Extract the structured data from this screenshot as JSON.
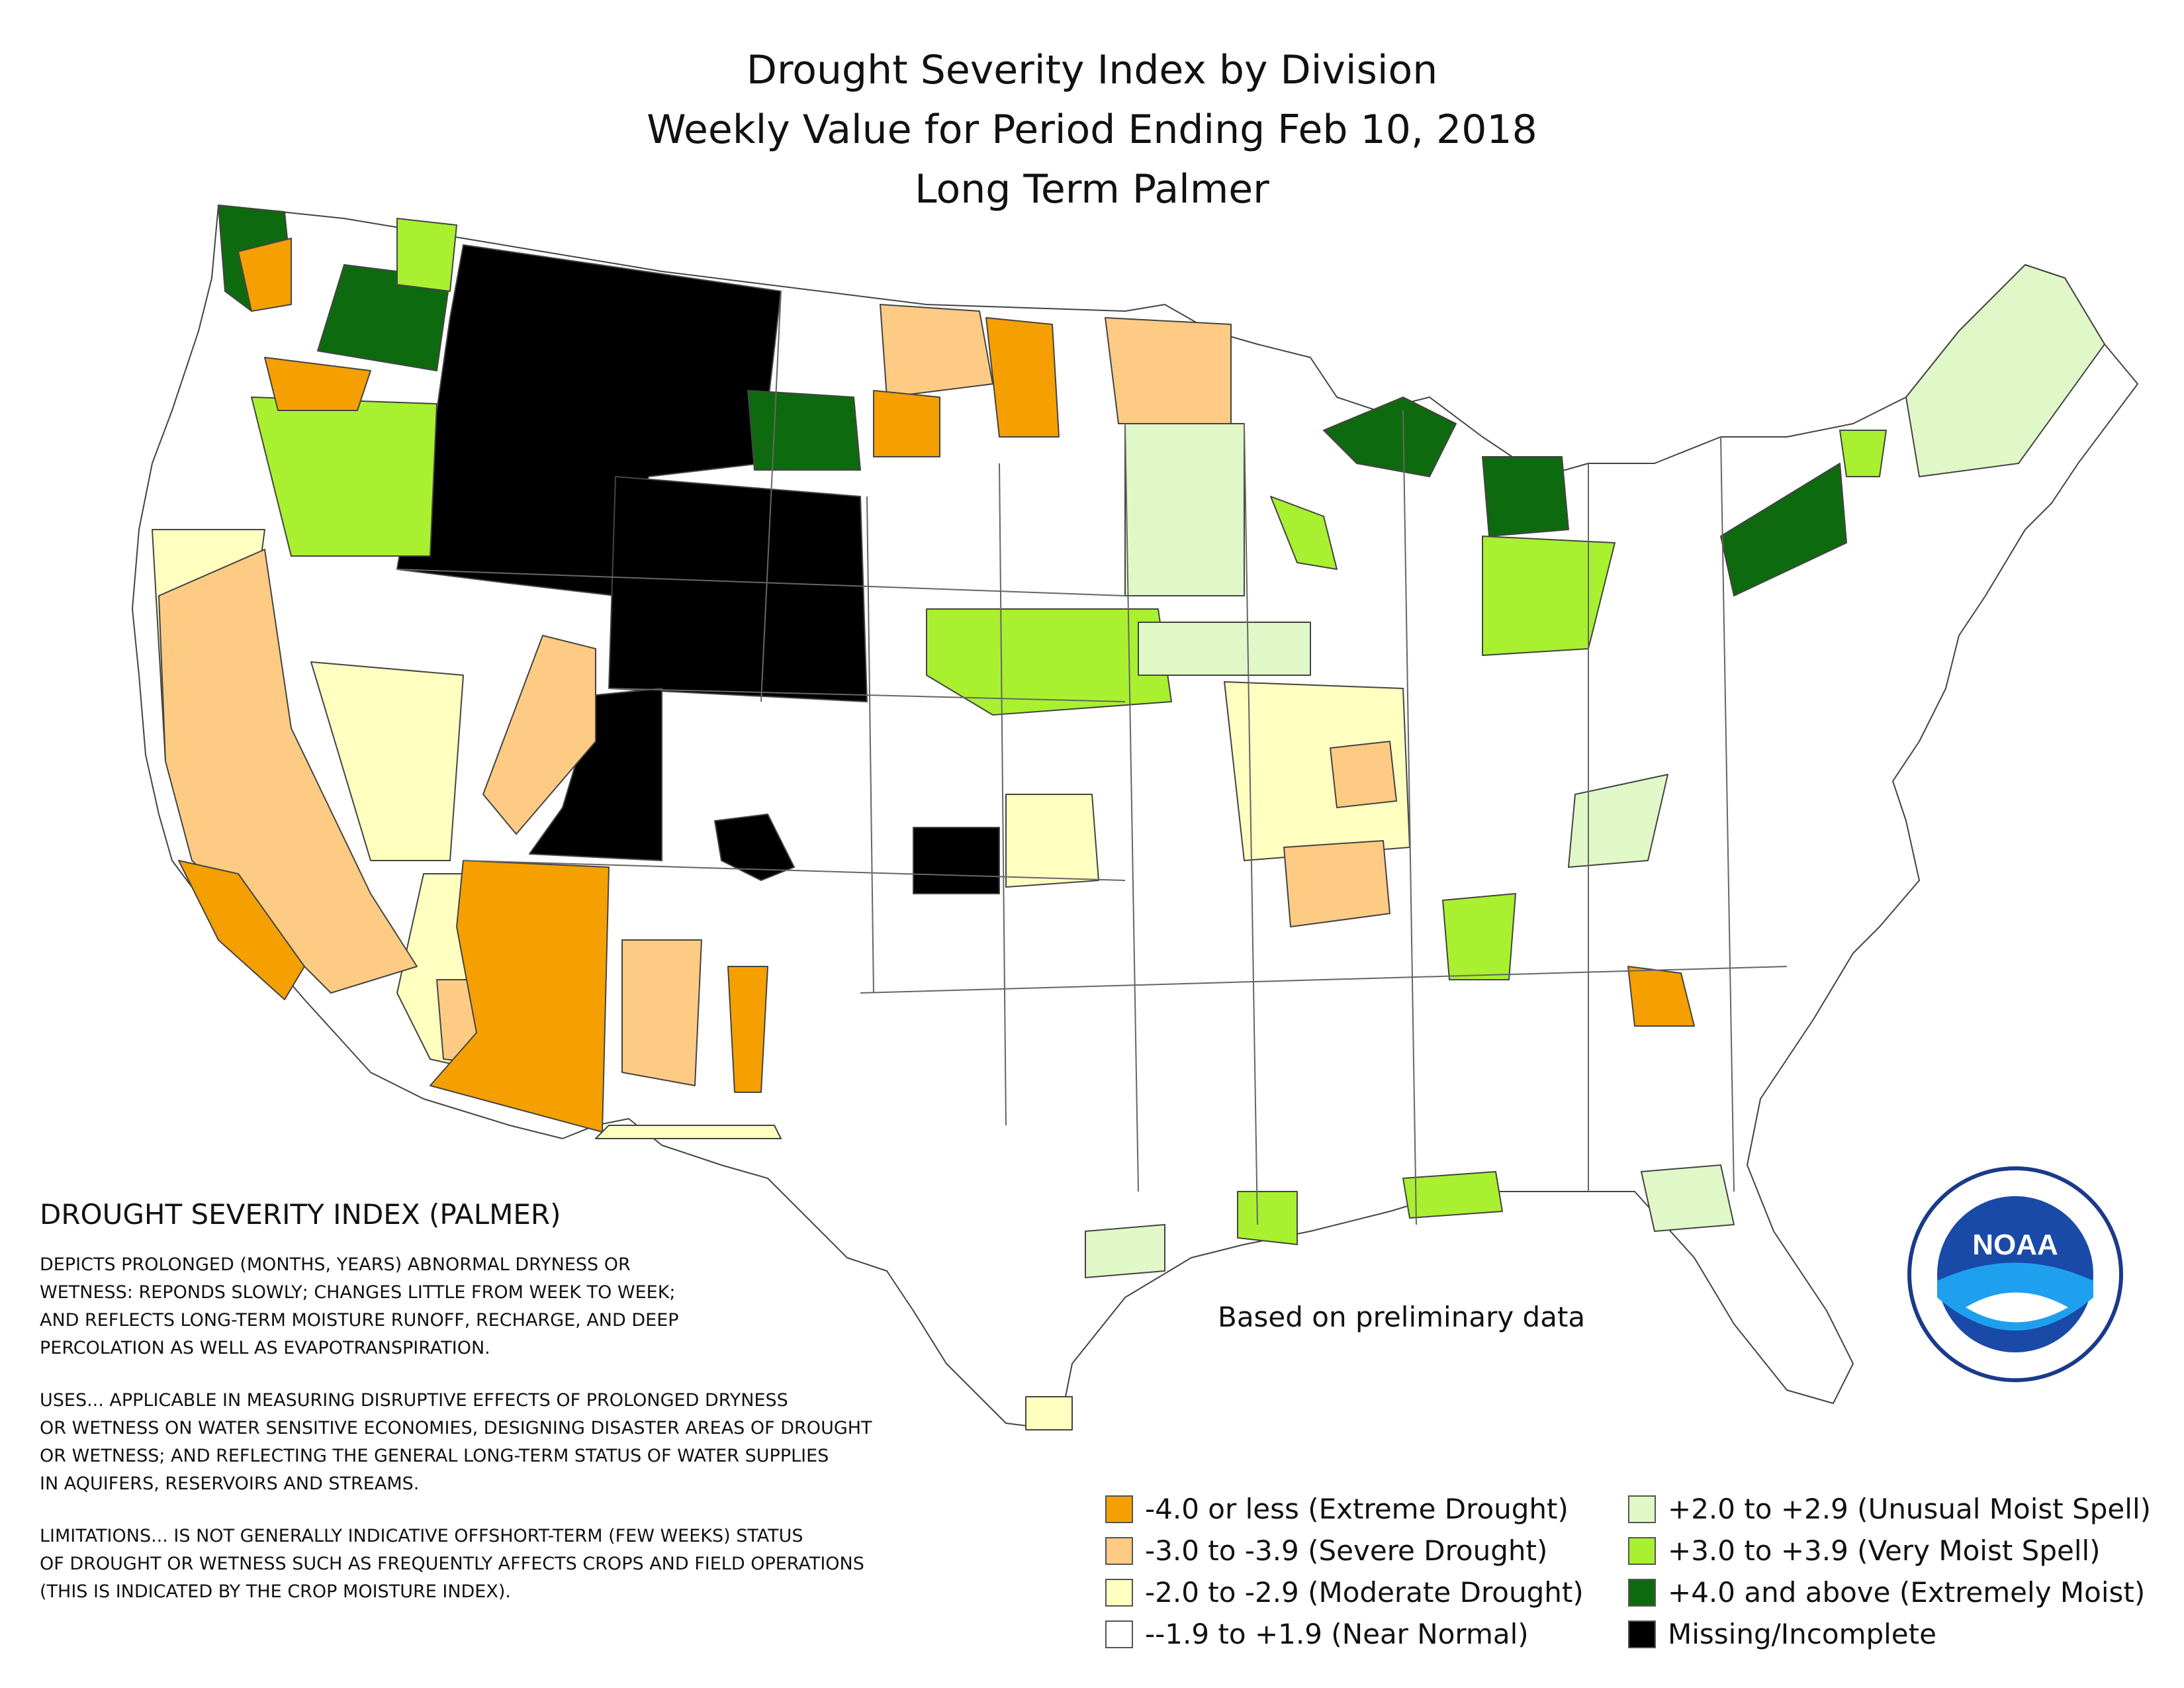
{
  "title": {
    "line1": "Drought Severity Index by Division",
    "line2": "Weekly Value for Period Ending Feb 10, 2018",
    "line3": "Long Term Palmer"
  },
  "info": {
    "heading": "DROUGHT SEVERITY INDEX (PALMER)",
    "p1": [
      "DEPICTS PROLONGED (MONTHS, YEARS) ABNORMAL DRYNESS OR",
      "WETNESS: REPONDS SLOWLY; CHANGES LITTLE FROM WEEK TO WEEK;",
      "AND REFLECTS LONG-TERM MOISTURE RUNOFF, RECHARGE, AND DEEP",
      "PERCOLATION AS WELL AS EVAPOTRANSPIRATION."
    ],
    "p2": [
      "USES... APPLICABLE IN MEASURING DISRUPTIVE EFFECTS OF PROLONGED DRYNESS",
      "OR WETNESS ON WATER SENSITIVE ECONOMIES, DESIGNING DISASTER AREAS OF DROUGHT",
      "OR WETNESS; AND REFLECTING THE GENERAL LONG-TERM STATUS OF WATER SUPPLIES",
      "IN AQUIFERS, RESERVOIRS AND STREAMS."
    ],
    "p3": [
      "LIMITATIONS... IS NOT GENERALLY INDICATIVE OFFSHORT-TERM (FEW WEEKS) STATUS",
      "OF DROUGHT OR WETNESS SUCH AS FREQUENTLY AFFECTS CROPS AND FIELD OPERATIONS",
      "(THIS IS INDICATED BY THE CROP MOISTURE INDEX)."
    ]
  },
  "note": "Based on preliminary data",
  "legend": [
    {
      "label": "-4.0 or less (Extreme Drought)",
      "color": "#f5a000"
    },
    {
      "label": "-3.0 to -3.9 (Severe Drought)",
      "color": "#fdcb84"
    },
    {
      "label": "-2.0 to -2.9 (Moderate Drought)",
      "color": "#ffffc0"
    },
    {
      "label": "--1.9 to +1.9 (Near Normal)",
      "color": "#ffffff"
    },
    {
      "label": "+2.0 to +2.9 (Unusual Moist Spell)",
      "color": "#e0f8c8"
    },
    {
      "label": "+3.0 to +3.9 (Very Moist Spell)",
      "color": "#a8f030"
    },
    {
      "label": "+4.0 and above (Extremely Moist)",
      "color": "#0e6a0e"
    },
    {
      "label": "Missing/Incomplete",
      "color": "#000000"
    }
  ],
  "logo": {
    "icon": "noaa-logo",
    "text": "NOAA"
  }
}
